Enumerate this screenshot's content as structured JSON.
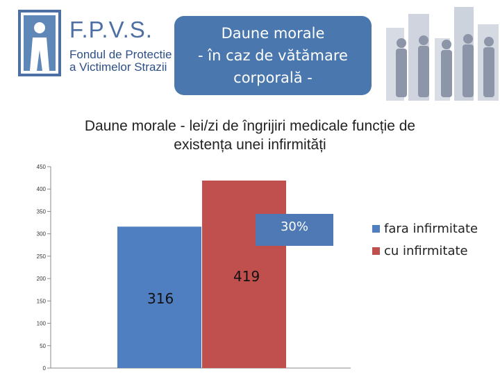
{
  "logo": {
    "abbr": "F.P.V.S.",
    "line1": "Fondul de Protectie",
    "line2": "a Victimelor Strazii"
  },
  "header": {
    "line1": "Daune morale",
    "line2": "- în caz de vătămare",
    "line3": "corporală -"
  },
  "colors": {
    "accent_blue": "#4a77ad",
    "series_blue": "#4f7fc0",
    "series_red": "#c0504d",
    "callout_blue": "#4e79b5"
  },
  "callout": {
    "text": "30%",
    "icon": "plus-icon"
  },
  "chart_data": {
    "type": "bar",
    "title": "Daune morale  - lei/zi de îngrijiri medicale funcție de existența unei infirmități",
    "title_line1": "Daune morale  - lei/zi de îngrijiri medicale funcție de",
    "title_line2": "existența unei infirmități",
    "categories": [
      ""
    ],
    "series": [
      {
        "name": "fara infirmitate",
        "values": [
          316
        ],
        "color": "#4f7fc0"
      },
      {
        "name": "cu infirmitate",
        "values": [
          419
        ],
        "color": "#c0504d"
      }
    ],
    "data_labels": [
      "316",
      "419"
    ],
    "yticks": [
      0,
      50,
      100,
      150,
      200,
      250,
      300,
      350,
      400,
      450
    ],
    "ylim": [
      0,
      450
    ],
    "grid": false,
    "legend_position": "right",
    "xlabel": "",
    "ylabel": ""
  }
}
